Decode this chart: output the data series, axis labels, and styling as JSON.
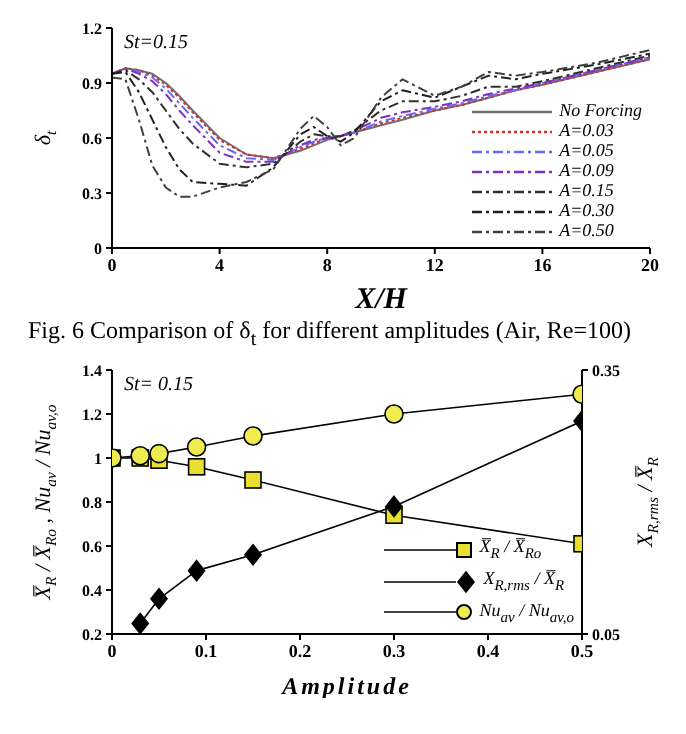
{
  "chart_data": [
    {
      "type": "line",
      "xlabel": "X/H",
      "ylabel": "δ$_{t}$",
      "annotations": [
        "St=0.15",
        "Fig. 6 Comparison of δ$_{t}$ for different amplitudes (Air, Re=100)"
      ],
      "x": [
        0,
        0.5,
        1,
        1.5,
        2,
        2.5,
        3,
        4,
        5,
        6,
        7,
        7.5,
        8,
        8.5,
        9,
        10,
        10.8,
        12,
        13,
        14,
        15,
        16,
        18,
        20
      ],
      "xlim": [
        0,
        20
      ],
      "xticks": [
        0,
        4,
        8,
        12,
        16,
        20
      ],
      "ylim": [
        0,
        1.2
      ],
      "yticks": [
        0,
        0.3,
        0.6,
        0.9,
        1.2
      ],
      "legend": "bottom right",
      "marker": "none",
      "series": [
        {
          "name": "No Forcing",
          "color": "#707070",
          "line_style": "solid",
          "values": [
            0.95,
            0.98,
            0.97,
            0.95,
            0.9,
            0.83,
            0.75,
            0.6,
            0.51,
            0.49,
            0.53,
            0.56,
            0.59,
            0.61,
            0.63,
            0.67,
            0.7,
            0.75,
            0.78,
            0.82,
            0.86,
            0.89,
            0.96,
            1.03
          ]
        },
        {
          "name": "A=0.03",
          "color": "#d03030",
          "line_style": "dotted",
          "values": [
            0.95,
            0.98,
            0.97,
            0.94,
            0.89,
            0.82,
            0.74,
            0.59,
            0.51,
            0.49,
            0.54,
            0.57,
            0.6,
            0.61,
            0.63,
            0.68,
            0.71,
            0.75,
            0.78,
            0.82,
            0.86,
            0.89,
            0.96,
            1.03
          ]
        },
        {
          "name": "A=0.05",
          "color": "#6a6af0",
          "line_style": "dashed",
          "values": [
            0.95,
            0.98,
            0.96,
            0.93,
            0.87,
            0.79,
            0.71,
            0.56,
            0.49,
            0.48,
            0.55,
            0.58,
            0.6,
            0.61,
            0.63,
            0.69,
            0.72,
            0.76,
            0.79,
            0.83,
            0.86,
            0.9,
            0.97,
            1.04
          ]
        },
        {
          "name": "A=0.09",
          "color": "#8030c0",
          "line_style": "dashed",
          "values": [
            0.95,
            0.98,
            0.95,
            0.91,
            0.84,
            0.75,
            0.67,
            0.52,
            0.47,
            0.47,
            0.56,
            0.59,
            0.6,
            0.61,
            0.64,
            0.71,
            0.74,
            0.77,
            0.8,
            0.84,
            0.87,
            0.9,
            0.97,
            1.04
          ]
        },
        {
          "name": "A=0.15",
          "color": "#303030",
          "line_style": "dashed",
          "values": [
            0.95,
            0.97,
            0.92,
            0.85,
            0.75,
            0.65,
            0.57,
            0.46,
            0.44,
            0.46,
            0.58,
            0.62,
            0.61,
            0.61,
            0.64,
            0.75,
            0.8,
            0.8,
            0.83,
            0.88,
            0.88,
            0.91,
            0.98,
            1.05
          ]
        },
        {
          "name": "A=0.30",
          "color": "#202020",
          "line_style": "dashed",
          "values": [
            0.95,
            0.96,
            0.85,
            0.7,
            0.55,
            0.43,
            0.36,
            0.35,
            0.34,
            0.44,
            0.62,
            0.66,
            0.61,
            0.58,
            0.63,
            0.8,
            0.86,
            0.82,
            0.88,
            0.94,
            0.92,
            0.95,
            1.0,
            1.06
          ]
        },
        {
          "name": "A=0.50",
          "color": "#404040",
          "line_style": "dashed",
          "values": [
            0.93,
            0.92,
            0.7,
            0.45,
            0.33,
            0.28,
            0.28,
            0.33,
            0.36,
            0.43,
            0.65,
            0.72,
            0.66,
            0.56,
            0.6,
            0.82,
            0.92,
            0.83,
            0.88,
            0.96,
            0.94,
            0.96,
            1.01,
            1.08
          ]
        }
      ]
    },
    {
      "type": "line",
      "xlabel": "Amplitude",
      "ylabel": "X̅$_{R}$ / X̅$_{Ro}$ , Nu$_{av}$ / Nu$_{av,o}$",
      "y2label": "X$_{R,rms}$ / X̅$_{R}$",
      "annotations": [
        "St= 0.15"
      ],
      "xlim": [
        0,
        0.5
      ],
      "xticks": [
        0,
        0.1,
        0.2,
        0.3,
        0.4,
        0.5
      ],
      "ylim": [
        0.2,
        1.4
      ],
      "yticks": [
        0.2,
        0.4,
        0.6,
        0.8,
        1,
        1.2,
        1.4
      ],
      "y2lim": [
        0.05,
        0.35
      ],
      "y2ticks": [
        0.05,
        0.35
      ],
      "legend": "bottom right",
      "series": [
        {
          "name": "X̅$_{R}$ / X̅$_{Ro}$",
          "color": "#e8e030",
          "marker": "square",
          "x": [
            0,
            0.03,
            0.05,
            0.09,
            0.15,
            0.3,
            0.5
          ],
          "values": [
            1,
            1.0,
            0.99,
            0.96,
            0.9,
            0.74,
            0.61
          ]
        },
        {
          "name": "X$_{R,rms}$ / X̅$_{R}$",
          "color": "#000000",
          "marker": "diamond",
          "axis": "y2",
          "x": [
            0.03,
            0.05,
            0.09,
            0.15,
            0.3,
            0.5
          ],
          "values": [
            0.062,
            0.09,
            0.122,
            0.14,
            0.195,
            0.292
          ]
        },
        {
          "name": "Nu$_{av}$ / Nu$_{av,o}$",
          "color": "#f0ec50",
          "marker": "circle",
          "x": [
            0,
            0.03,
            0.05,
            0.09,
            0.15,
            0.3,
            0.5
          ],
          "values": [
            1,
            1.01,
            1.02,
            1.05,
            1.1,
            1.2,
            1.29
          ]
        }
      ]
    }
  ]
}
